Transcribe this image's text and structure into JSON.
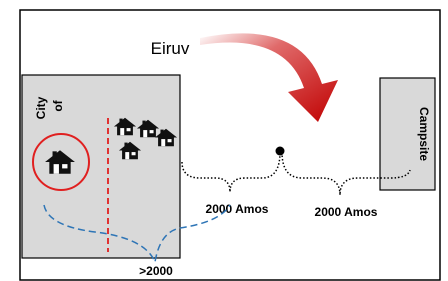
{
  "labels": {
    "eiruv": "Eiruv",
    "city": "City",
    "of": "of",
    "campsite": "Campsite",
    "distance_1": "2000 Amos",
    "distance_2": "2000 Amos",
    "distance_3": ">2000"
  }
}
